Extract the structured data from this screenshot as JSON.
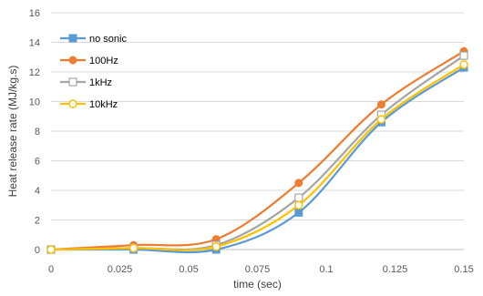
{
  "chart_data": {
    "type": "line",
    "xlabel": "time (sec)",
    "ylabel": "Heat release rate (MJ/kg.s)",
    "xlim": [
      0,
      0.15
    ],
    "ylim": [
      0,
      16
    ],
    "xticks": [
      "0",
      "0.025",
      "0.05",
      "0.075",
      "0.1",
      "0.125",
      "0.15"
    ],
    "yticks": [
      "0",
      "2",
      "4",
      "6",
      "8",
      "10",
      "12",
      "14",
      "16"
    ],
    "grid": "horizontal",
    "legend_position": "top-left",
    "x": [
      0,
      0.03,
      0.06,
      0.09,
      0.12,
      0.15
    ],
    "series": [
      {
        "name": "no sonic",
        "values": [
          0,
          0,
          0,
          2.5,
          8.6,
          12.3
        ],
        "color": "#5b9bd5",
        "marker": "square-filled"
      },
      {
        "name": "100Hz",
        "values": [
          0,
          0.3,
          0.7,
          4.5,
          9.8,
          13.4
        ],
        "color": "#ed7d31",
        "marker": "circle-filled"
      },
      {
        "name": "1kHz",
        "values": [
          0,
          0.1,
          0.3,
          3.5,
          9.1,
          13.1
        ],
        "color": "#a5a5a5",
        "marker": "square-open"
      },
      {
        "name": "10kHz",
        "values": [
          0,
          0.1,
          0.2,
          3.0,
          8.8,
          12.5
        ],
        "color": "#ffc000",
        "marker": "circle-open"
      }
    ]
  }
}
